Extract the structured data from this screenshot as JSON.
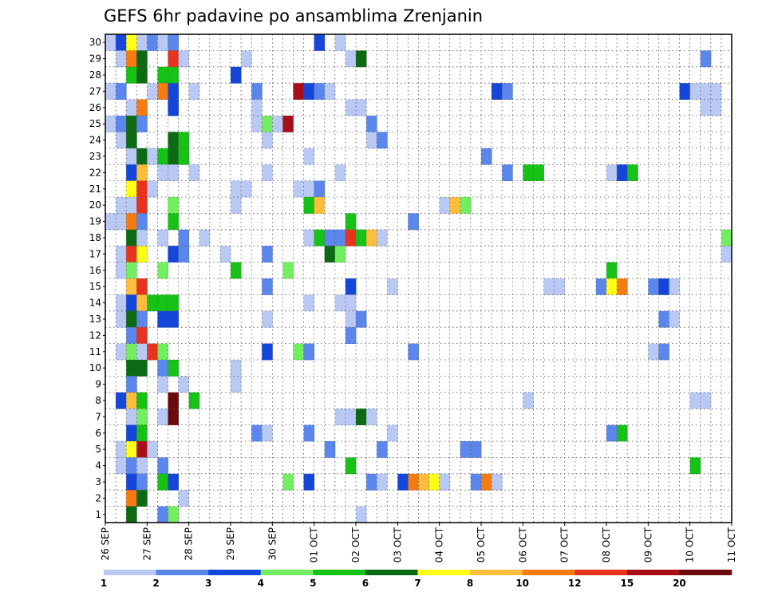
{
  "chart_data": {
    "type": "heatmap",
    "title": "GEFS 6hr padavine po ansamblima Zrenjanin",
    "x_tick_labels": [
      "26 SEP",
      "27 SEP",
      "28 SEP",
      "29 SEP",
      "30 SEP",
      "01 OCT",
      "02 OCT",
      "03 OCT",
      "04 OCT",
      "05 OCT",
      "06 OCT",
      "07 OCT",
      "08 OCT",
      "09 OCT",
      "10 OCT",
      "11 OCT"
    ],
    "y_tick_labels": [
      "1",
      "2",
      "3",
      "4",
      "5",
      "6",
      "7",
      "8",
      "9",
      "10",
      "11",
      "12",
      "13",
      "14",
      "15",
      "16",
      "17",
      "18",
      "19",
      "20",
      "21",
      "22",
      "23",
      "24",
      "25",
      "26",
      "27",
      "28",
      "29",
      "30"
    ],
    "x_steps_per_day": 4,
    "grid": true,
    "colorbar": {
      "levels": [
        "1",
        "2",
        "3",
        "4",
        "5",
        "6",
        "7",
        "8",
        "10",
        "12",
        "15",
        "20"
      ],
      "colors": [
        "#b9c9f4",
        "#5b86ec",
        "#1346d9",
        "#72ee60",
        "#17c217",
        "#0b6b12",
        "#ffff18",
        "#ffbd3c",
        "#f67b13",
        "#e6341e",
        "#a80e17",
        "#6b0a0a"
      ]
    },
    "rows": [
      {
        "member": "30",
        "cells": [
          [
            0,
            1
          ],
          [
            1,
            3
          ],
          [
            2,
            7
          ],
          [
            3,
            1
          ],
          [
            4,
            2
          ],
          [
            5,
            1
          ],
          [
            6,
            2
          ],
          [
            20,
            3
          ],
          [
            22,
            1
          ]
        ]
      },
      {
        "member": "29",
        "cells": [
          [
            1,
            1
          ],
          [
            2,
            9
          ],
          [
            3,
            6
          ],
          [
            6,
            10
          ],
          [
            7,
            1
          ],
          [
            13,
            1
          ],
          [
            23,
            1
          ],
          [
            24,
            6
          ],
          [
            57,
            2
          ]
        ]
      },
      {
        "member": "28",
        "cells": [
          [
            2,
            5
          ],
          [
            3,
            6
          ],
          [
            5,
            5
          ],
          [
            6,
            5
          ],
          [
            12,
            3
          ]
        ]
      },
      {
        "member": "27",
        "cells": [
          [
            0,
            1
          ],
          [
            1,
            2
          ],
          [
            4,
            1
          ],
          [
            5,
            9
          ],
          [
            6,
            3
          ],
          [
            8,
            1
          ],
          [
            14,
            2
          ],
          [
            18,
            11
          ],
          [
            19,
            3
          ],
          [
            20,
            2
          ],
          [
            21,
            1
          ],
          [
            37,
            3
          ],
          [
            38,
            2
          ],
          [
            55,
            3
          ],
          [
            56,
            1
          ],
          [
            57,
            1
          ],
          [
            58,
            1
          ]
        ]
      },
      {
        "member": "26",
        "cells": [
          [
            2,
            1
          ],
          [
            3,
            9
          ],
          [
            6,
            3
          ],
          [
            14,
            1
          ],
          [
            23,
            1
          ],
          [
            24,
            1
          ],
          [
            57,
            1
          ],
          [
            58,
            1
          ]
        ]
      },
      {
        "member": "25",
        "cells": [
          [
            0,
            1
          ],
          [
            1,
            2
          ],
          [
            2,
            6
          ],
          [
            3,
            2
          ],
          [
            14,
            1
          ],
          [
            15,
            4
          ],
          [
            16,
            1
          ],
          [
            17,
            11
          ],
          [
            25,
            2
          ]
        ]
      },
      {
        "member": "24",
        "cells": [
          [
            1,
            1
          ],
          [
            2,
            6
          ],
          [
            6,
            6
          ],
          [
            7,
            5
          ],
          [
            15,
            1
          ],
          [
            25,
            1
          ],
          [
            26,
            2
          ]
        ]
      },
      {
        "member": "23",
        "cells": [
          [
            2,
            1
          ],
          [
            3,
            6
          ],
          [
            4,
            1
          ],
          [
            5,
            5
          ],
          [
            6,
            6
          ],
          [
            7,
            5
          ],
          [
            19,
            1
          ],
          [
            36,
            2
          ]
        ]
      },
      {
        "member": "22",
        "cells": [
          [
            2,
            3
          ],
          [
            3,
            8
          ],
          [
            5,
            1
          ],
          [
            6,
            1
          ],
          [
            8,
            1
          ],
          [
            15,
            1
          ],
          [
            22,
            1
          ],
          [
            38,
            2
          ],
          [
            40,
            5
          ],
          [
            41,
            5
          ],
          [
            48,
            1
          ],
          [
            49,
            3
          ],
          [
            50,
            5
          ]
        ]
      },
      {
        "member": "21",
        "cells": [
          [
            2,
            7
          ],
          [
            3,
            10
          ],
          [
            4,
            1
          ],
          [
            12,
            1
          ],
          [
            13,
            1
          ],
          [
            18,
            1
          ],
          [
            19,
            1
          ],
          [
            20,
            2
          ]
        ]
      },
      {
        "member": "20",
        "cells": [
          [
            1,
            1
          ],
          [
            2,
            1
          ],
          [
            3,
            10
          ],
          [
            6,
            4
          ],
          [
            12,
            1
          ],
          [
            19,
            5
          ],
          [
            20,
            8
          ],
          [
            32,
            1
          ],
          [
            33,
            8
          ],
          [
            34,
            4
          ]
        ]
      },
      {
        "member": "19",
        "cells": [
          [
            0,
            1
          ],
          [
            1,
            1
          ],
          [
            2,
            9
          ],
          [
            3,
            2
          ],
          [
            6,
            5
          ],
          [
            23,
            5
          ],
          [
            29,
            2
          ]
        ]
      },
      {
        "member": "18",
        "cells": [
          [
            2,
            6
          ],
          [
            3,
            1
          ],
          [
            5,
            1
          ],
          [
            7,
            2
          ],
          [
            9,
            1
          ],
          [
            19,
            1
          ],
          [
            20,
            5
          ],
          [
            21,
            2
          ],
          [
            22,
            2
          ],
          [
            23,
            10
          ],
          [
            24,
            5
          ],
          [
            25,
            8
          ],
          [
            26,
            1
          ],
          [
            59,
            4
          ]
        ]
      },
      {
        "member": "17",
        "cells": [
          [
            1,
            1
          ],
          [
            2,
            10
          ],
          [
            3,
            7
          ],
          [
            6,
            3
          ],
          [
            7,
            2
          ],
          [
            11,
            1
          ],
          [
            15,
            2
          ],
          [
            21,
            6
          ],
          [
            22,
            4
          ],
          [
            59,
            1
          ]
        ]
      },
      {
        "member": "16",
        "cells": [
          [
            1,
            1
          ],
          [
            2,
            4
          ],
          [
            5,
            4
          ],
          [
            12,
            5
          ],
          [
            17,
            4
          ],
          [
            48,
            5
          ]
        ]
      },
      {
        "member": "15",
        "cells": [
          [
            2,
            8
          ],
          [
            3,
            10
          ],
          [
            15,
            2
          ],
          [
            23,
            3
          ],
          [
            27,
            1
          ],
          [
            42,
            1
          ],
          [
            43,
            1
          ],
          [
            47,
            2
          ],
          [
            48,
            7
          ],
          [
            49,
            9
          ],
          [
            52,
            2
          ],
          [
            53,
            3
          ],
          [
            54,
            1
          ]
        ]
      },
      {
        "member": "14",
        "cells": [
          [
            1,
            1
          ],
          [
            2,
            3
          ],
          [
            3,
            8
          ],
          [
            4,
            5
          ],
          [
            5,
            5
          ],
          [
            6,
            5
          ],
          [
            19,
            1
          ],
          [
            22,
            1
          ],
          [
            23,
            1
          ]
        ]
      },
      {
        "member": "13",
        "cells": [
          [
            1,
            1
          ],
          [
            2,
            6
          ],
          [
            3,
            2
          ],
          [
            5,
            3
          ],
          [
            6,
            3
          ],
          [
            15,
            1
          ],
          [
            23,
            1
          ],
          [
            24,
            2
          ],
          [
            53,
            2
          ],
          [
            54,
            1
          ]
        ]
      },
      {
        "member": "12",
        "cells": [
          [
            2,
            2
          ],
          [
            3,
            10
          ],
          [
            23,
            2
          ]
        ]
      },
      {
        "member": "11",
        "cells": [
          [
            1,
            1
          ],
          [
            2,
            4
          ],
          [
            3,
            1
          ],
          [
            4,
            10
          ],
          [
            5,
            4
          ],
          [
            15,
            3
          ],
          [
            18,
            4
          ],
          [
            19,
            2
          ],
          [
            29,
            2
          ],
          [
            52,
            1
          ],
          [
            53,
            2
          ]
        ]
      },
      {
        "member": "10",
        "cells": [
          [
            2,
            6
          ],
          [
            3,
            6
          ],
          [
            5,
            2
          ],
          [
            6,
            5
          ],
          [
            12,
            1
          ]
        ]
      },
      {
        "member": "9",
        "cells": [
          [
            2,
            2
          ],
          [
            5,
            1
          ],
          [
            7,
            1
          ],
          [
            12,
            1
          ]
        ]
      },
      {
        "member": "8",
        "cells": [
          [
            1,
            3
          ],
          [
            2,
            8
          ],
          [
            3,
            5
          ],
          [
            6,
            12
          ],
          [
            8,
            5
          ],
          [
            40,
            1
          ],
          [
            56,
            1
          ],
          [
            57,
            1
          ]
        ]
      },
      {
        "member": "7",
        "cells": [
          [
            2,
            1
          ],
          [
            3,
            4
          ],
          [
            5,
            1
          ],
          [
            6,
            12
          ],
          [
            22,
            1
          ],
          [
            23,
            1
          ],
          [
            24,
            6
          ],
          [
            25,
            1
          ]
        ]
      },
      {
        "member": "6",
        "cells": [
          [
            2,
            3
          ],
          [
            3,
            5
          ],
          [
            14,
            2
          ],
          [
            15,
            1
          ],
          [
            19,
            2
          ],
          [
            27,
            1
          ],
          [
            48,
            2
          ],
          [
            49,
            5
          ]
        ]
      },
      {
        "member": "5",
        "cells": [
          [
            1,
            1
          ],
          [
            2,
            7
          ],
          [
            3,
            11
          ],
          [
            4,
            1
          ],
          [
            21,
            2
          ],
          [
            26,
            2
          ],
          [
            34,
            2
          ],
          [
            35,
            2
          ]
        ]
      },
      {
        "member": "4",
        "cells": [
          [
            1,
            1
          ],
          [
            2,
            2
          ],
          [
            3,
            1
          ],
          [
            5,
            2
          ],
          [
            23,
            5
          ],
          [
            56,
            5
          ]
        ]
      },
      {
        "member": "3",
        "cells": [
          [
            2,
            3
          ],
          [
            3,
            2
          ],
          [
            5,
            5
          ],
          [
            6,
            3
          ],
          [
            17,
            4
          ],
          [
            19,
            3
          ],
          [
            25,
            2
          ],
          [
            26,
            1
          ],
          [
            28,
            3
          ],
          [
            29,
            9
          ],
          [
            30,
            8
          ],
          [
            31,
            7
          ],
          [
            32,
            1
          ],
          [
            35,
            2
          ],
          [
            36,
            9
          ],
          [
            37,
            1
          ]
        ]
      },
      {
        "member": "2",
        "cells": [
          [
            2,
            9
          ],
          [
            3,
            6
          ],
          [
            7,
            1
          ]
        ]
      },
      {
        "member": "1",
        "cells": [
          [
            2,
            6
          ],
          [
            5,
            2
          ],
          [
            6,
            4
          ],
          [
            24,
            1
          ]
        ]
      }
    ]
  }
}
